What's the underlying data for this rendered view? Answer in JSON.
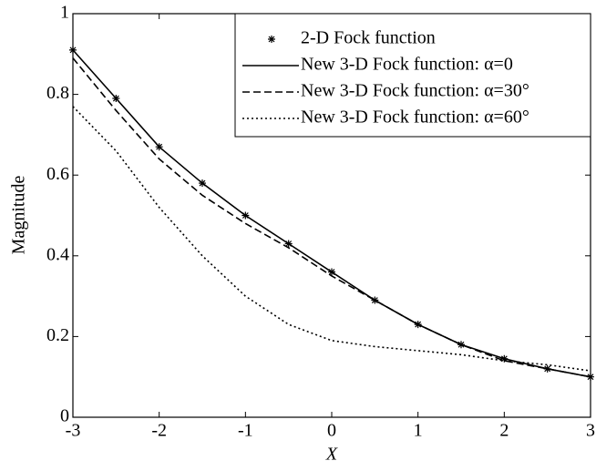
{
  "chart_data": {
    "type": "line",
    "x_label": "X",
    "y_label": "Magnitude",
    "x": [
      -3,
      -2.5,
      -2,
      -1.5,
      -1,
      -0.5,
      0,
      0.5,
      1,
      1.5,
      2,
      2.5,
      3
    ],
    "series": [
      {
        "name": "2-D Fock function",
        "color": "#000000",
        "style": "star",
        "values": [
          0.91,
          0.79,
          0.67,
          0.58,
          0.5,
          0.43,
          0.36,
          0.29,
          0.23,
          0.18,
          0.145,
          0.12,
          0.1
        ]
      },
      {
        "name": "New 3-D Fock function: α=0",
        "color": "#000000",
        "style": "solid",
        "values": [
          0.91,
          0.79,
          0.67,
          0.58,
          0.5,
          0.43,
          0.36,
          0.29,
          0.23,
          0.18,
          0.145,
          0.12,
          0.1
        ]
      },
      {
        "name": "New 3-D Fock function: α=30°",
        "color": "#000000",
        "style": "dashed",
        "values": [
          0.89,
          0.76,
          0.64,
          0.55,
          0.48,
          0.42,
          0.35,
          0.29,
          0.23,
          0.18,
          0.14,
          0.12,
          0.1
        ]
      },
      {
        "name": "New 3-D Fock function: α=60°",
        "color": "#000000",
        "style": "dotted",
        "values": [
          0.77,
          0.66,
          0.52,
          0.4,
          0.3,
          0.23,
          0.19,
          0.175,
          0.165,
          0.155,
          0.14,
          0.13,
          0.115
        ]
      }
    ],
    "xlim": [
      -3,
      3
    ],
    "xticks": [
      -3,
      -2,
      -1,
      0,
      1,
      2,
      3
    ],
    "ylim": [
      0,
      1
    ],
    "yticks": [
      0,
      0.2,
      0.4,
      0.6,
      0.8,
      1
    ],
    "legend": "upper right"
  }
}
